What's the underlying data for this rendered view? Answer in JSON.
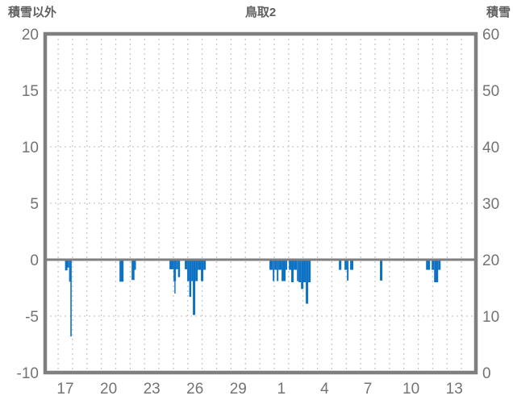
{
  "chart_data": {
    "type": "bar",
    "title": "鳥取2",
    "left_axis": {
      "title": "積雪以外",
      "max": 20,
      "min": -10,
      "ticks": [
        20,
        15,
        10,
        5,
        0,
        -5,
        -10
      ]
    },
    "right_axis": {
      "title": "積雪",
      "max": 60,
      "min": 0,
      "ticks": [
        60,
        50,
        40,
        30,
        20,
        10,
        0
      ]
    },
    "x_axis": {
      "unit": "day",
      "min": -0.9,
      "max": 29,
      "gridline_step": 1,
      "labels": [
        {
          "x": 0.5,
          "t": "17"
        },
        {
          "x": 3.5,
          "t": "20"
        },
        {
          "x": 6.5,
          "t": "23"
        },
        {
          "x": 9.5,
          "t": "26"
        },
        {
          "x": 12.5,
          "t": "29"
        },
        {
          "x": 15.5,
          "t": "1"
        },
        {
          "x": 18.5,
          "t": "4"
        },
        {
          "x": 21.5,
          "t": "7"
        },
        {
          "x": 24.5,
          "t": "10"
        },
        {
          "x": 27.5,
          "t": "13"
        }
      ]
    },
    "grid": true,
    "zero_line_value": 0,
    "legend": "none",
    "series_name": "積雪以外",
    "bars": [
      {
        "x": 0.48,
        "w": 0.17,
        "v": -0.95
      },
      {
        "x": 0.64,
        "w": 0.11,
        "v": -0.7
      },
      {
        "x": 0.76,
        "w": 0.1,
        "v": -1.95
      },
      {
        "x": 0.85,
        "w": 0.09,
        "v": -6.8
      },
      {
        "x": 4.26,
        "w": 0.28,
        "v": -1.95
      },
      {
        "x": 5.1,
        "w": 0.2,
        "v": -1.8
      },
      {
        "x": 5.29,
        "w": 0.11,
        "v": -0.9
      },
      {
        "x": 7.73,
        "w": 0.28,
        "v": -0.85
      },
      {
        "x": 8.01,
        "w": 0.17,
        "v": -1.9
      },
      {
        "x": 8.07,
        "w": 0.08,
        "v": -3.0
      },
      {
        "x": 8.18,
        "w": 0.14,
        "v": -0.85
      },
      {
        "x": 8.32,
        "w": 0.14,
        "v": -1.55
      },
      {
        "x": 8.79,
        "w": 0.17,
        "v": -0.85
      },
      {
        "x": 8.96,
        "w": 0.14,
        "v": -1.9
      },
      {
        "x": 9.1,
        "w": 0.14,
        "v": -3.3
      },
      {
        "x": 9.24,
        "w": 0.11,
        "v": -1.9
      },
      {
        "x": 9.35,
        "w": 0.17,
        "v": -4.9
      },
      {
        "x": 9.52,
        "w": 0.17,
        "v": -1.9
      },
      {
        "x": 9.69,
        "w": 0.22,
        "v": -0.9
      },
      {
        "x": 9.91,
        "w": 0.17,
        "v": -1.9
      },
      {
        "x": 10.08,
        "w": 0.17,
        "v": -0.9
      },
      {
        "x": 14.67,
        "w": 0.22,
        "v": -0.9
      },
      {
        "x": 14.9,
        "w": 0.11,
        "v": -1.9
      },
      {
        "x": 15.01,
        "w": 0.17,
        "v": -0.9
      },
      {
        "x": 15.18,
        "w": 0.11,
        "v": -1.9
      },
      {
        "x": 15.29,
        "w": 0.22,
        "v": -0.9
      },
      {
        "x": 15.51,
        "w": 0.28,
        "v": -1.9
      },
      {
        "x": 15.79,
        "w": 0.11,
        "v": -0.9
      },
      {
        "x": 16.02,
        "w": 0.17,
        "v": -0.9
      },
      {
        "x": 16.18,
        "w": 0.17,
        "v": -2.0
      },
      {
        "x": 16.35,
        "w": 0.22,
        "v": -0.9
      },
      {
        "x": 16.58,
        "w": 0.11,
        "v": -1.9
      },
      {
        "x": 16.69,
        "w": 0.17,
        "v": -2.0
      },
      {
        "x": 16.86,
        "w": 0.17,
        "v": -2.6
      },
      {
        "x": 17.02,
        "w": 0.17,
        "v": -2.0
      },
      {
        "x": 17.19,
        "w": 0.17,
        "v": -3.9
      },
      {
        "x": 17.36,
        "w": 0.17,
        "v": -2.0
      },
      {
        "x": 19.49,
        "w": 0.17,
        "v": -0.9
      },
      {
        "x": 19.88,
        "w": 0.17,
        "v": -0.9
      },
      {
        "x": 20.05,
        "w": 0.11,
        "v": -1.85
      },
      {
        "x": 20.27,
        "w": 0.22,
        "v": -0.9
      },
      {
        "x": 22.34,
        "w": 0.17,
        "v": -1.85
      },
      {
        "x": 25.54,
        "w": 0.28,
        "v": -0.9
      },
      {
        "x": 25.93,
        "w": 0.17,
        "v": -0.9
      },
      {
        "x": 26.1,
        "w": 0.28,
        "v": -2.0
      },
      {
        "x": 26.38,
        "w": 0.17,
        "v": -0.9
      }
    ],
    "colors": {
      "bar": "#0e72c4",
      "axis_frame": "#7f7f7f",
      "zero_line": "#7f7f7f",
      "grid": "#c9c9c9",
      "tick_text": "#737373",
      "header_text": "#5f5f5f",
      "background": "#ffffff"
    }
  }
}
